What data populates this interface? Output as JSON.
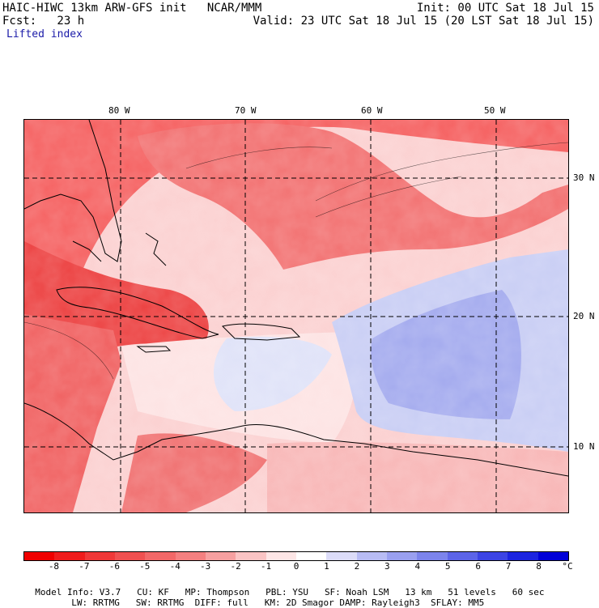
{
  "header": {
    "line1_left": "HAIC-HIWC 13km ARW-GFS init   NCAR/MMM",
    "line2_left": "Fcst:   23 h",
    "line1_right": "Init: 00 UTC Sat 18 Jul 15",
    "line2_right": "Valid: 23 UTC Sat 18 Jul 15 (20 LST Sat 18 Jul 15)",
    "field": "Lifted index"
  },
  "map": {
    "lon_labels": [
      "80 W",
      "70 W",
      "60 W",
      "50 W"
    ],
    "lat_labels": [
      "30 N",
      "20 N",
      "10 N"
    ],
    "colors": {
      "strong_neg": "#f02828",
      "mid_neg": "#f56a6a",
      "weak_neg": "#fab4b4",
      "near_zero": "#fde6e6",
      "weak_pos": "#d8dcf6",
      "mid_pos": "#9fa8ec",
      "ocean_blue": "#aab0f0"
    }
  },
  "colorbar": {
    "ticks": [
      "-8",
      "-7",
      "-6",
      "-5",
      "-4",
      "-3",
      "-2",
      "-1",
      "0",
      "1",
      "2",
      "3",
      "4",
      "5",
      "6",
      "7",
      "8"
    ],
    "unit": "°C",
    "colors": [
      "#f00000",
      "#f01c1c",
      "#f03838",
      "#f05050",
      "#f26868",
      "#f48080",
      "#f6a0a0",
      "#fac4c4",
      "#fde6e6",
      "#ffffff",
      "#dcdcf8",
      "#b8bcf4",
      "#9aa0f0",
      "#7c84ec",
      "#5c64e8",
      "#3c44e4",
      "#1c24e0",
      "#0000d8"
    ]
  },
  "footer": {
    "line1": [
      "Model Info: V3.7",
      "CU: KF",
      "MP: Thompson",
      "PBL: YSU",
      "SF: Noah LSM",
      "13 km",
      "51 levels",
      "60 sec"
    ],
    "line2": [
      "LW: RRTMG",
      "SW: RRTMG",
      "DIFF: full",
      "KM: 2D Smagor",
      "DAMP: Rayleigh3",
      "SFLAY: MM5"
    ]
  }
}
